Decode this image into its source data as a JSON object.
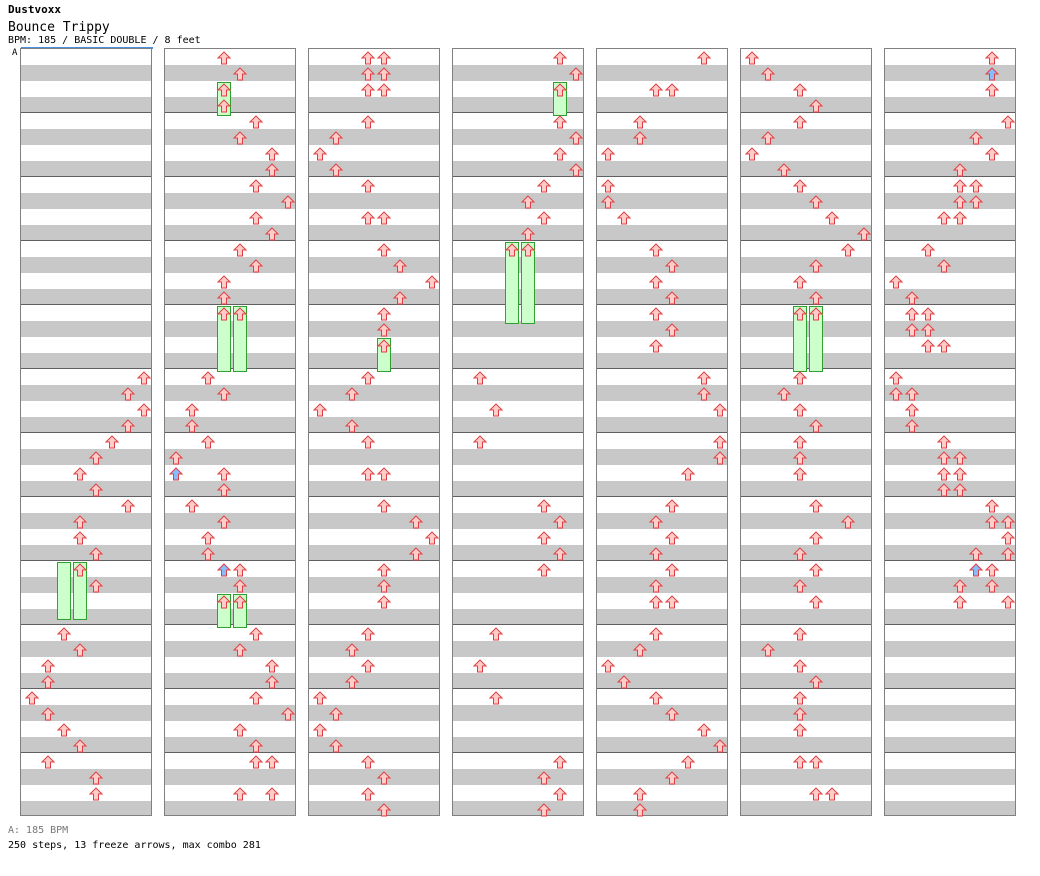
{
  "artist": "Dustvoxx",
  "song_title": "Bounce Trippy",
  "meta_line": "BPM: 185 / BASIC DOUBLE / 8 feet",
  "section_marker": "A",
  "bpm_footer": "A: 185 BPM",
  "stats_footer": "250 steps, 13 freeze arrows, max combo 281",
  "colors": {
    "arrow": "#ffcccc",
    "arrow_stroke": "#e04040",
    "blue_arrow": "#88bbff",
    "freeze": "#ccffcc"
  },
  "chart_data": {
    "type": "step chart",
    "bpm": 185,
    "mode": "BASIC DOUBLE",
    "difficulty_feet": 8,
    "steps": 250,
    "freeze_arrows": 13,
    "max_combo": 281
  }
}
